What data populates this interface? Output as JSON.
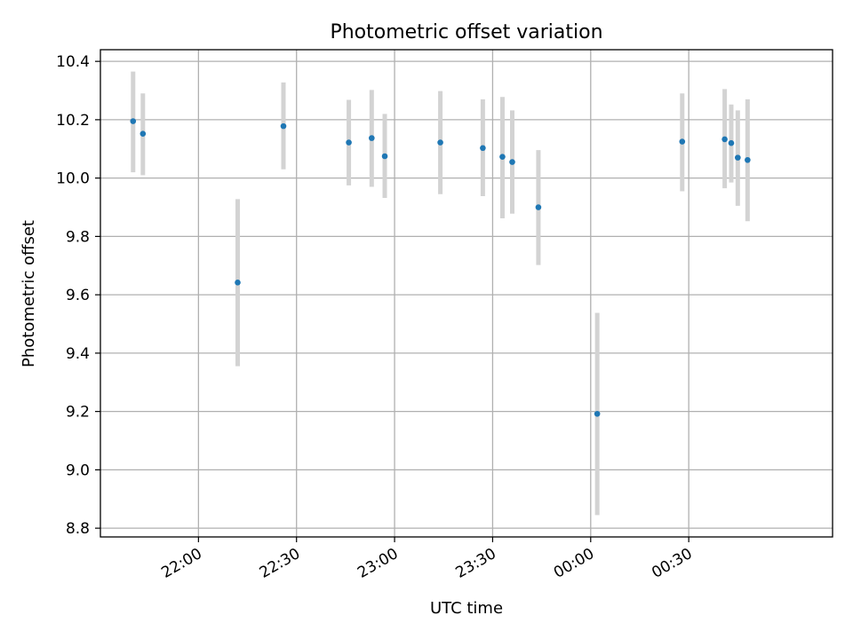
{
  "chart_data": {
    "type": "scatter",
    "title": "Photometric offset variation",
    "xlabel": "UTC time",
    "ylabel": "Photometric offset",
    "x_tick_labels": [
      "22:00",
      "22:30",
      "23:00",
      "23:30",
      "00:00",
      "00:30"
    ],
    "y_tick_labels": [
      "8.8",
      "9.0",
      "9.2",
      "9.4",
      "9.6",
      "9.8",
      "10.0",
      "10.2",
      "10.4"
    ],
    "y_ticks": [
      8.8,
      9.0,
      9.2,
      9.4,
      9.6,
      9.8,
      10.0,
      10.2,
      10.4
    ],
    "x_tick_times": [
      "22:00",
      "22:30",
      "23:00",
      "23:30",
      "24:00",
      "24:30"
    ],
    "xlim": [
      "21:30",
      "25:14"
    ],
    "ylim": [
      8.77,
      10.44
    ],
    "grid": true,
    "point_color": "#1f77b4",
    "errorbar_color": "#d3d3d3",
    "points": [
      {
        "time": "21:40",
        "y": 10.195,
        "lo": 10.02,
        "hi": 10.365
      },
      {
        "time": "21:43",
        "y": 10.152,
        "lo": 10.01,
        "hi": 10.29
      },
      {
        "time": "22:12",
        "y": 9.642,
        "lo": 9.355,
        "hi": 9.928
      },
      {
        "time": "22:26",
        "y": 10.178,
        "lo": 10.03,
        "hi": 10.328
      },
      {
        "time": "22:46",
        "y": 10.122,
        "lo": 9.975,
        "hi": 10.268
      },
      {
        "time": "22:53",
        "y": 10.137,
        "lo": 9.97,
        "hi": 10.302
      },
      {
        "time": "22:57",
        "y": 10.075,
        "lo": 9.932,
        "hi": 10.22
      },
      {
        "time": "23:14",
        "y": 10.122,
        "lo": 9.945,
        "hi": 10.298
      },
      {
        "time": "23:27",
        "y": 10.103,
        "lo": 9.938,
        "hi": 10.27
      },
      {
        "time": "23:33",
        "y": 10.073,
        "lo": 9.862,
        "hi": 10.278
      },
      {
        "time": "23:36",
        "y": 10.055,
        "lo": 9.878,
        "hi": 10.232
      },
      {
        "time": "23:44",
        "y": 9.9,
        "lo": 9.702,
        "hi": 10.096
      },
      {
        "time": "24:02",
        "y": 9.192,
        "lo": 8.845,
        "hi": 9.538
      },
      {
        "time": "24:28",
        "y": 10.125,
        "lo": 9.955,
        "hi": 10.29
      },
      {
        "time": "24:41",
        "y": 10.133,
        "lo": 9.965,
        "hi": 10.305
      },
      {
        "time": "24:43",
        "y": 10.12,
        "lo": 9.985,
        "hi": 10.252
      },
      {
        "time": "24:45",
        "y": 10.07,
        "lo": 9.905,
        "hi": 10.232
      },
      {
        "time": "24:48",
        "y": 10.062,
        "lo": 9.852,
        "hi": 10.27
      }
    ]
  }
}
